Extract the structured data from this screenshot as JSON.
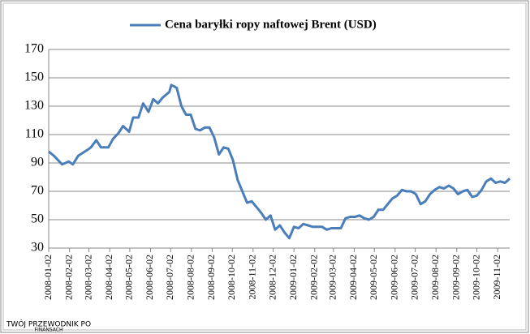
{
  "chart_data": {
    "type": "line",
    "series": [
      {
        "name": "Cena baryłki ropy naftowej Brent (USD)",
        "color": "#4a7ebb",
        "values": [
          98,
          95,
          89,
          91,
          89,
          95,
          99,
          101,
          106,
          101,
          101,
          107,
          111,
          116,
          112,
          122,
          122,
          132,
          126,
          135,
          132,
          136,
          140,
          145,
          143,
          130,
          124,
          124,
          114,
          113,
          115,
          115,
          108,
          96,
          101,
          100,
          92,
          78,
          70,
          62,
          63,
          59,
          55,
          50,
          53,
          43,
          46,
          41,
          37,
          45,
          44,
          47,
          46,
          45,
          45,
          45,
          43,
          44,
          44,
          44,
          51,
          52,
          52,
          53,
          51,
          50,
          52,
          57,
          57,
          61,
          65,
          67,
          71,
          70,
          70,
          68,
          61,
          63,
          68,
          71,
          73,
          72,
          74,
          72,
          68,
          70,
          71,
          66,
          67,
          71,
          77,
          79,
          76,
          77,
          76,
          79
        ]
      }
    ],
    "x": [
      "2008-01-02",
      "2008-01-10",
      "2008-01-22",
      "2008-02-01",
      "2008-02-07",
      "2008-02-15",
      "2008-02-28",
      "2008-03-05",
      "2008-03-13",
      "2008-03-20",
      "2008-03-31",
      "2008-04-07",
      "2008-04-15",
      "2008-04-22",
      "2008-05-01",
      "2008-05-07",
      "2008-05-15",
      "2008-05-22",
      "2008-05-30",
      "2008-06-06",
      "2008-06-13",
      "2008-06-20",
      "2008-06-30",
      "2008-07-03",
      "2008-07-11",
      "2008-07-18",
      "2008-07-25",
      "2008-08-01",
      "2008-08-08",
      "2008-08-15",
      "2008-08-22",
      "2008-08-29",
      "2008-09-05",
      "2008-09-12",
      "2008-09-19",
      "2008-09-26",
      "2008-10-03",
      "2008-10-10",
      "2008-10-17",
      "2008-10-24",
      "2008-10-31",
      "2008-11-07",
      "2008-11-14",
      "2008-11-21",
      "2008-11-28",
      "2008-12-05",
      "2008-12-12",
      "2008-12-19",
      "2008-12-26",
      "2009-01-02",
      "2009-01-09",
      "2009-01-16",
      "2009-01-23",
      "2009-01-30",
      "2009-02-06",
      "2009-02-13",
      "2009-02-20",
      "2009-02-27",
      "2009-03-06",
      "2009-03-13",
      "2009-03-20",
      "2009-03-27",
      "2009-04-03",
      "2009-04-10",
      "2009-04-17",
      "2009-04-24",
      "2009-05-01",
      "2009-05-08",
      "2009-05-15",
      "2009-05-22",
      "2009-05-29",
      "2009-06-05",
      "2009-06-12",
      "2009-06-19",
      "2009-06-26",
      "2009-07-03",
      "2009-07-10",
      "2009-07-17",
      "2009-07-24",
      "2009-07-31",
      "2009-08-07",
      "2009-08-14",
      "2009-08-21",
      "2009-08-28",
      "2009-09-04",
      "2009-09-11",
      "2009-09-18",
      "2009-09-25",
      "2009-10-02",
      "2009-10-09",
      "2009-10-16",
      "2009-10-23",
      "2009-10-30",
      "2009-11-06",
      "2009-11-13",
      "2009-11-20"
    ],
    "xlim": [
      "2008-01-02",
      "2009-11-20"
    ],
    "xticks": [
      "2008-01-02",
      "2008-02-02",
      "2008-03-02",
      "2008-04-02",
      "2008-05-02",
      "2008-06-02",
      "2008-07-02",
      "2008-08-02",
      "2008-09-02",
      "2008-10-02",
      "2008-11-02",
      "2008-12-02",
      "2009-01-02",
      "2009-02-02",
      "2009-03-02",
      "2009-04-02",
      "2009-05-02",
      "2009-06-02",
      "2009-07-02",
      "2009-08-02",
      "2009-09-02",
      "2009-10-02",
      "2009-11-02"
    ],
    "ylim": [
      30,
      170
    ],
    "yticks": [
      30,
      50,
      70,
      90,
      110,
      130,
      150,
      170
    ],
    "grid": true,
    "watermark": [
      "TWÓJ PRZEWODNIK PO",
      "FINANSACH"
    ]
  }
}
